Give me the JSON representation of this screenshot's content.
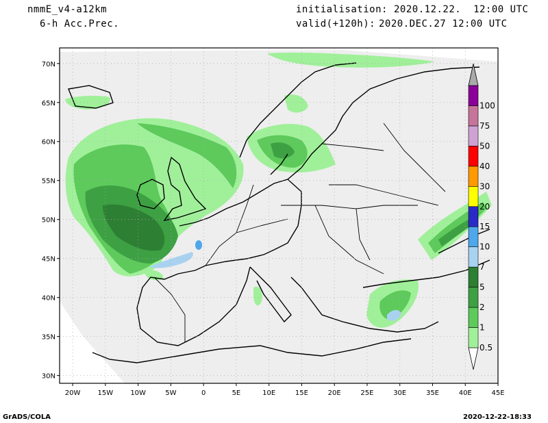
{
  "header": {
    "model": "nmmE_v4-a12km",
    "field": "6-h Acc.Prec.",
    "init_label": "initialisation:",
    "init_value": "2020.12.22.  12:00 UTC",
    "valid_label": "valid(+120h):",
    "valid_value": "2020.DEC.27 12:00 UTC"
  },
  "footer": {
    "left": "GrADS/COLA",
    "right": "2020-12-22-18:33"
  },
  "map": {
    "lon_range": [
      -22,
      45
    ],
    "lat_range": [
      29,
      72
    ],
    "lat_ticks": [
      "70N",
      "65N",
      "60N",
      "55N",
      "50N",
      "45N",
      "40N",
      "35N",
      "30N"
    ],
    "lon_ticks": [
      "20W",
      "15W",
      "10W",
      "5W",
      "0",
      "5E",
      "10E",
      "15E",
      "20E",
      "25E",
      "30E",
      "35E",
      "40E",
      "45E"
    ],
    "colors": {
      "domain": "#eeeeee",
      "outside": "#ffffff",
      "coast": "#000000",
      "grid": "#aaaaaa"
    }
  },
  "colorbar": {
    "levels": [
      {
        "label": "0.5",
        "color": "#a0f09a"
      },
      {
        "label": "1",
        "color": "#5dca5b"
      },
      {
        "label": "2",
        "color": "#3da043"
      },
      {
        "label": "5",
        "color": "#2d7f33"
      },
      {
        "label": "7",
        "color": "#a9d2f0"
      },
      {
        "label": "10",
        "color": "#4ea7ea"
      },
      {
        "label": "15",
        "color": "#2a2ac7"
      },
      {
        "label": "20",
        "color": "#ffff00"
      },
      {
        "label": "30",
        "color": "#ff9900"
      },
      {
        "label": "40",
        "color": "#ff0000"
      },
      {
        "label": "50",
        "color": "#cfa2d4"
      },
      {
        "label": "75",
        "color": "#c6749a"
      },
      {
        "label": "100",
        "color": "#8b0098"
      },
      {
        "label": "",
        "color": "#aaaaaa"
      }
    ]
  }
}
